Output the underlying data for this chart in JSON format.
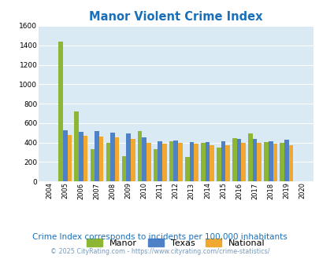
{
  "title": "Manor Violent Crime Index",
  "years": [
    2004,
    2005,
    2006,
    2007,
    2008,
    2009,
    2010,
    2011,
    2012,
    2013,
    2014,
    2015,
    2016,
    2017,
    2018,
    2019,
    2020
  ],
  "manor": [
    0,
    1440,
    720,
    330,
    400,
    260,
    520,
    335,
    415,
    250,
    400,
    345,
    445,
    495,
    405,
    395,
    0
  ],
  "texas": [
    0,
    525,
    510,
    515,
    505,
    492,
    450,
    410,
    420,
    405,
    405,
    415,
    435,
    440,
    415,
    425,
    0
  ],
  "national": [
    0,
    475,
    470,
    460,
    450,
    435,
    400,
    385,
    400,
    390,
    370,
    375,
    400,
    395,
    385,
    375,
    0
  ],
  "manor_color": "#8db635",
  "texas_color": "#4f81c7",
  "national_color": "#f0a830",
  "plot_bg": "#daeaf4",
  "ylim": [
    0,
    1600
  ],
  "yticks": [
    0,
    200,
    400,
    600,
    800,
    1000,
    1200,
    1400,
    1600
  ],
  "subtitle": "Crime Index corresponds to incidents per 100,000 inhabitants",
  "footer": "© 2025 CityRating.com - https://www.cityrating.com/crime-statistics/",
  "title_color": "#1a6fbb",
  "subtitle_color": "#1a6fbb",
  "footer_color": "#7799bb"
}
